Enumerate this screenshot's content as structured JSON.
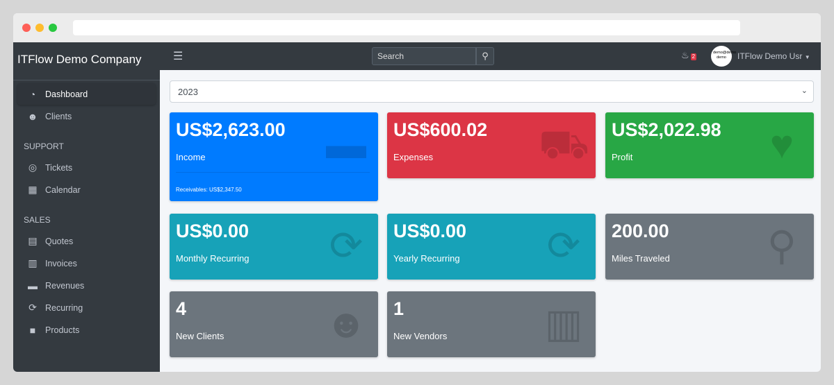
{
  "sidebar": {
    "brand": "ITFlow Demo Company",
    "items": [
      {
        "label": "Dashboard",
        "icon": "tachometer-icon",
        "active": true
      },
      {
        "label": "Clients",
        "icon": "users-icon"
      }
    ],
    "support_header": "SUPPORT",
    "support": [
      {
        "label": "Tickets",
        "icon": "life-ring-icon"
      },
      {
        "label": "Calendar",
        "icon": "calendar-icon"
      }
    ],
    "sales_header": "SALES",
    "sales": [
      {
        "label": "Quotes",
        "icon": "file-icon"
      },
      {
        "label": "Invoices",
        "icon": "invoice-icon"
      },
      {
        "label": "Revenues",
        "icon": "credit-card-icon"
      },
      {
        "label": "Recurring",
        "icon": "sync-icon"
      },
      {
        "label": "Products",
        "icon": "box-icon"
      }
    ]
  },
  "topbar": {
    "search_placeholder": "Search",
    "notifications": "2",
    "avatar_text": "demo@demo demo",
    "user": "ITFlow Demo Usr"
  },
  "year": "2023",
  "cards": [
    {
      "value": "US$2,623.00",
      "label": "Income",
      "footer": "Receivables: US$2,347.50",
      "color": "#007bff",
      "icon": "credit-card-icon"
    },
    {
      "value": "US$600.02",
      "label": "Expenses",
      "color": "#dc3545",
      "icon": "shopping-cart-icon"
    },
    {
      "value": "US$2,022.98",
      "label": "Profit",
      "color": "#28a745",
      "icon": "heart-icon"
    },
    {
      "value": "US$0.00",
      "label": "Monthly Recurring",
      "color": "#17a2b8",
      "icon": "sync-icon"
    },
    {
      "value": "US$0.00",
      "label": "Yearly Recurring",
      "color": "#17a2b8",
      "icon": "sync-icon"
    },
    {
      "value": "200.00",
      "label": "Miles Traveled",
      "color": "#6c757d",
      "icon": "route-icon"
    },
    {
      "value": "4",
      "label": "New Clients",
      "color": "#6c757d",
      "icon": "users-icon"
    },
    {
      "value": "1",
      "label": "New Vendors",
      "color": "#6c757d",
      "icon": "building-icon"
    }
  ]
}
